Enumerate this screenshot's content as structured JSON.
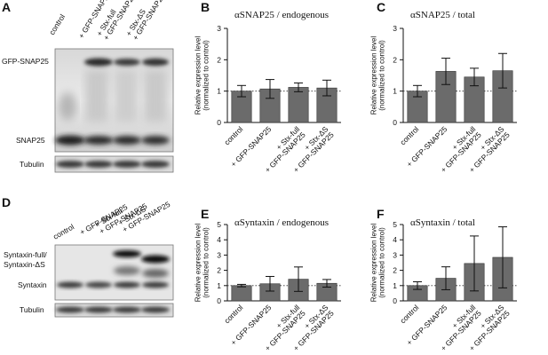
{
  "panel_labels": [
    "A",
    "B",
    "C",
    "D",
    "E",
    "F"
  ],
  "blots": [
    {
      "panel": "A",
      "lanes": [
        "control",
        "+ GFP-SNAP25",
        "+ Stx-full\n+ GFP-SNAP25",
        "+ Stx-ΔS\n+ GFP-SNAP25"
      ],
      "bands": [
        "GFP-SNAP25",
        "SNAP25"
      ],
      "loading_control": "Tubulin"
    },
    {
      "panel": "D",
      "lanes": [
        "control",
        "+ GFP-SNAP25",
        "+ Stx-full\n+ GFP-SNAP25",
        "+ Stx-ΔS\n+ GFP-SNAP25"
      ],
      "bands": [
        "Syntaxin-full/\nSyntaxin-ΔS",
        "Syntaxin"
      ],
      "loading_control": "Tubulin"
    }
  ],
  "chart_data": [
    {
      "panel": "B",
      "type": "bar",
      "title": "αSNAP25 / endogenous",
      "ylabel": "Relative expression level\n(normalized to control)",
      "categories": [
        "control",
        "+ GFP-SNAP25",
        "+ Stx-full\n+ GFP-SNAP25",
        "+ Stx-ΔS\n+ GFP-SNAP25"
      ],
      "values": [
        1.0,
        1.07,
        1.12,
        1.1
      ],
      "errors": [
        0.18,
        0.3,
        0.14,
        0.25
      ],
      "ylim": [
        0,
        3
      ],
      "yticks": [
        0,
        1,
        2,
        3
      ],
      "reference_line": 1,
      "bar_color": "#6b6b6b"
    },
    {
      "panel": "C",
      "type": "bar",
      "title": "αSNAP25 / total",
      "ylabel": "Relative expression level\n(normalized to control)",
      "categories": [
        "control",
        "+ GFP-SNAP25",
        "+ Stx-full\n+ GFP-SNAP25",
        "+ Stx-ΔS\n+ GFP-SNAP25"
      ],
      "values": [
        1.0,
        1.63,
        1.45,
        1.65
      ],
      "errors": [
        0.18,
        0.42,
        0.28,
        0.55
      ],
      "ylim": [
        0,
        3
      ],
      "yticks": [
        0,
        1,
        2,
        3
      ],
      "reference_line": 1,
      "bar_color": "#6b6b6b"
    },
    {
      "panel": "E",
      "type": "bar",
      "title": "αSyntaxin / endogenous",
      "ylabel": "Relative expression level\n(normalized to control)",
      "categories": [
        "control",
        "+ GFP-SNAP25",
        "+ Stx-full\n+ GFP-SNAP25",
        "+ Stx-ΔS\n+ GFP-SNAP25"
      ],
      "values": [
        1.0,
        1.12,
        1.42,
        1.15
      ],
      "errors": [
        0.08,
        0.48,
        0.8,
        0.25
      ],
      "ylim": [
        0,
        5
      ],
      "yticks": [
        0,
        1,
        2,
        3,
        4,
        5
      ],
      "reference_line": 1,
      "bar_color": "#6b6b6b"
    },
    {
      "panel": "F",
      "type": "bar",
      "title": "αSyntaxin / total",
      "ylabel": "Relative expression level\n(normalized to control)",
      "categories": [
        "control",
        "+ GFP-SNAP25",
        "+ Stx-full\n+ GFP-SNAP25",
        "+ Stx-ΔS\n+ GFP-SNAP25"
      ],
      "values": [
        1.0,
        1.48,
        2.45,
        2.85
      ],
      "errors": [
        0.25,
        0.75,
        1.8,
        2.0
      ],
      "ylim": [
        0,
        5
      ],
      "yticks": [
        0,
        1,
        2,
        3,
        4,
        5
      ],
      "reference_line": 1,
      "bar_color": "#6b6b6b"
    }
  ]
}
